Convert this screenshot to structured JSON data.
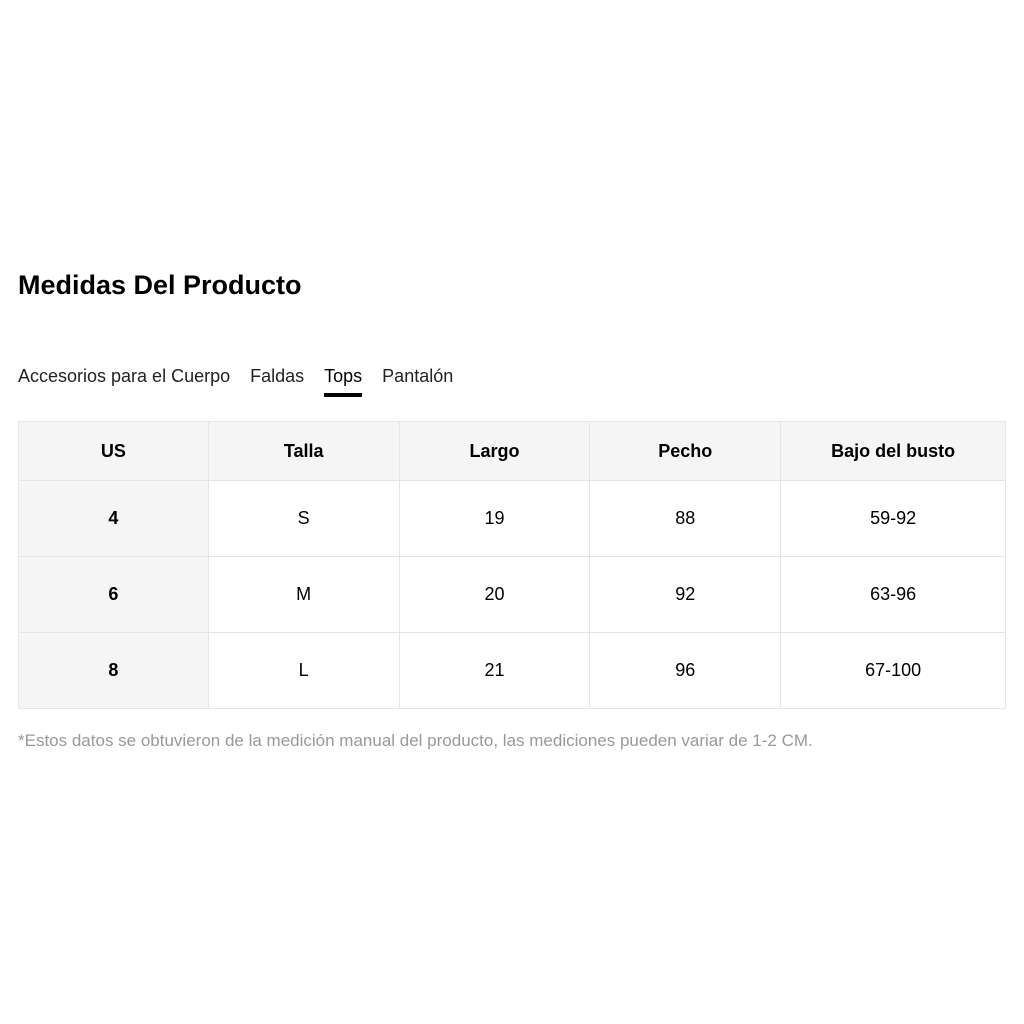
{
  "title": "Medidas Del Producto",
  "tabs": [
    {
      "label": "Accesorios para el Cuerpo",
      "active": false
    },
    {
      "label": "Faldas",
      "active": false
    },
    {
      "label": "Tops",
      "active": true
    },
    {
      "label": "Pantalón",
      "active": false
    }
  ],
  "table": {
    "headers": [
      "US",
      "Talla",
      "Largo",
      "Pecho",
      "Bajo del busto"
    ],
    "rows": [
      [
        "4",
        "S",
        "19",
        "88",
        "59-92"
      ],
      [
        "6",
        "M",
        "20",
        "92",
        "63-96"
      ],
      [
        "8",
        "L",
        "21",
        "96",
        "67-100"
      ]
    ]
  },
  "note": "*Estos datos se obtuvieron de la medición manual del producto, las mediciones pueden variar de 1-2 CM."
}
